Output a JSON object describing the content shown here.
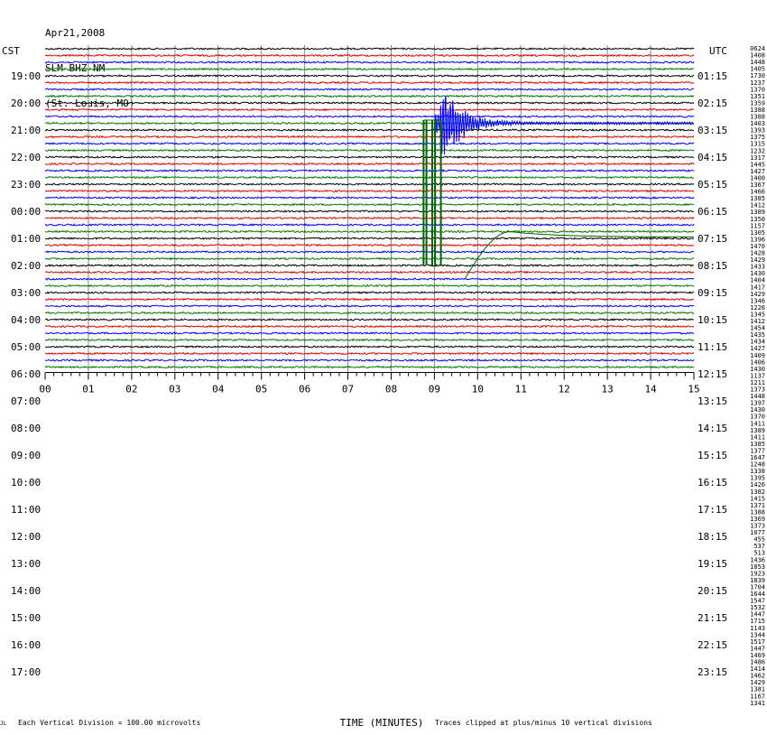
{
  "header": {
    "date": "Apr21,2008",
    "station": "SLM BHZ NM",
    "location": "(St. Louis, MO)"
  },
  "left_zone_label": "CST",
  "right_zone_label": "UTC",
  "colors": {
    "trace_cycle": [
      "#000000",
      "#e00000",
      "#0000ff",
      "#007800"
    ],
    "gridline": "#888888",
    "event_trace": "#0000ff",
    "pulse_trace": "#006400"
  },
  "footer": {
    "tiny_mark": "JL",
    "scale_note": "Each Vertical Division =  100.00 microvolts",
    "xlabel": "TIME (MINUTES)",
    "clip_note": "Traces clipped at plus/minus 10 vertical divisions"
  },
  "chart_data": {
    "type": "line",
    "title": "Apr21,2008 SLM BHZ NM (St. Louis, MO)",
    "xlabel": "TIME (MINUTES)",
    "xlim": [
      0,
      15
    ],
    "x_ticks": [
      "00",
      "01",
      "02",
      "03",
      "04",
      "05",
      "06",
      "07",
      "08",
      "09",
      "10",
      "11",
      "12",
      "13",
      "14",
      "15"
    ],
    "trace_count": 48,
    "minutes_per_trace": 15,
    "left_time_labels": [
      "19:00",
      "20:00",
      "21:00",
      "22:00",
      "23:00",
      "00:00",
      "01:00",
      "02:00",
      "03:00",
      "04:00",
      "05:00",
      "06:00",
      "07:00",
      "08:00",
      "09:00",
      "10:00",
      "11:00",
      "12:00",
      "13:00",
      "14:00",
      "15:00",
      "16:00",
      "17:00"
    ],
    "right_time_labels": [
      "01:15",
      "02:15",
      "03:15",
      "04:15",
      "05:15",
      "06:15",
      "07:15",
      "08:15",
      "09:15",
      "10:15",
      "11:15",
      "12:15",
      "13:15",
      "14:15",
      "15:15",
      "16:15",
      "17:15",
      "18:15",
      "19:15",
      "20:15",
      "21:15",
      "22:15",
      "23:15"
    ],
    "trace_values": [
      "0624",
      "1408",
      "1448",
      "1405",
      "1730",
      "1237",
      "1370",
      "1351",
      "1359",
      "1388",
      "1388",
      "1403",
      "1393",
      "1375",
      "1315",
      "1232",
      "1317",
      "1445",
      "1427",
      "1400",
      "1367",
      "1466",
      "1385",
      "1412",
      "1389",
      "1350",
      "1157",
      "1305",
      "1396",
      "1470",
      "1428",
      "1429",
      "1433",
      "1430",
      "1404",
      "1417",
      "1429",
      "1346",
      "1226",
      "1345",
      "1412",
      "1454",
      "1435",
      "1434",
      "1427",
      "1409",
      "1406",
      "1430",
      "1137",
      "1211",
      "1373",
      "1448",
      "1397",
      "1430",
      "1370",
      "1411",
      "1389",
      "1411",
      "1385",
      "1377",
      "1647",
      "1248",
      "1338",
      "1395",
      "1426",
      "1382",
      "1415",
      "1371",
      "1388",
      "1369",
      "1373",
      "1077",
      "455",
      "537",
      "513",
      "1436",
      "1853",
      "1923",
      "1839",
      "1704",
      "1644",
      "1547",
      "1532",
      "1447",
      "1715",
      "1143",
      "1344",
      "1517",
      "1447",
      "1469",
      "1486",
      "1414",
      "1462",
      "1429",
      "1381",
      "1167",
      "1341"
    ],
    "events": [
      {
        "name": "earthquake",
        "trace_index": 11,
        "start_minute": 9.0,
        "end_minute": 15.0
      },
      {
        "name": "calibration pulses",
        "trace_index": 30,
        "start_minute": 8.75,
        "end_minute": 9.15
      },
      {
        "name": "slow recovery",
        "trace_index": 30,
        "start_minute": 9.7,
        "end_minute": 15.0
      }
    ]
  }
}
